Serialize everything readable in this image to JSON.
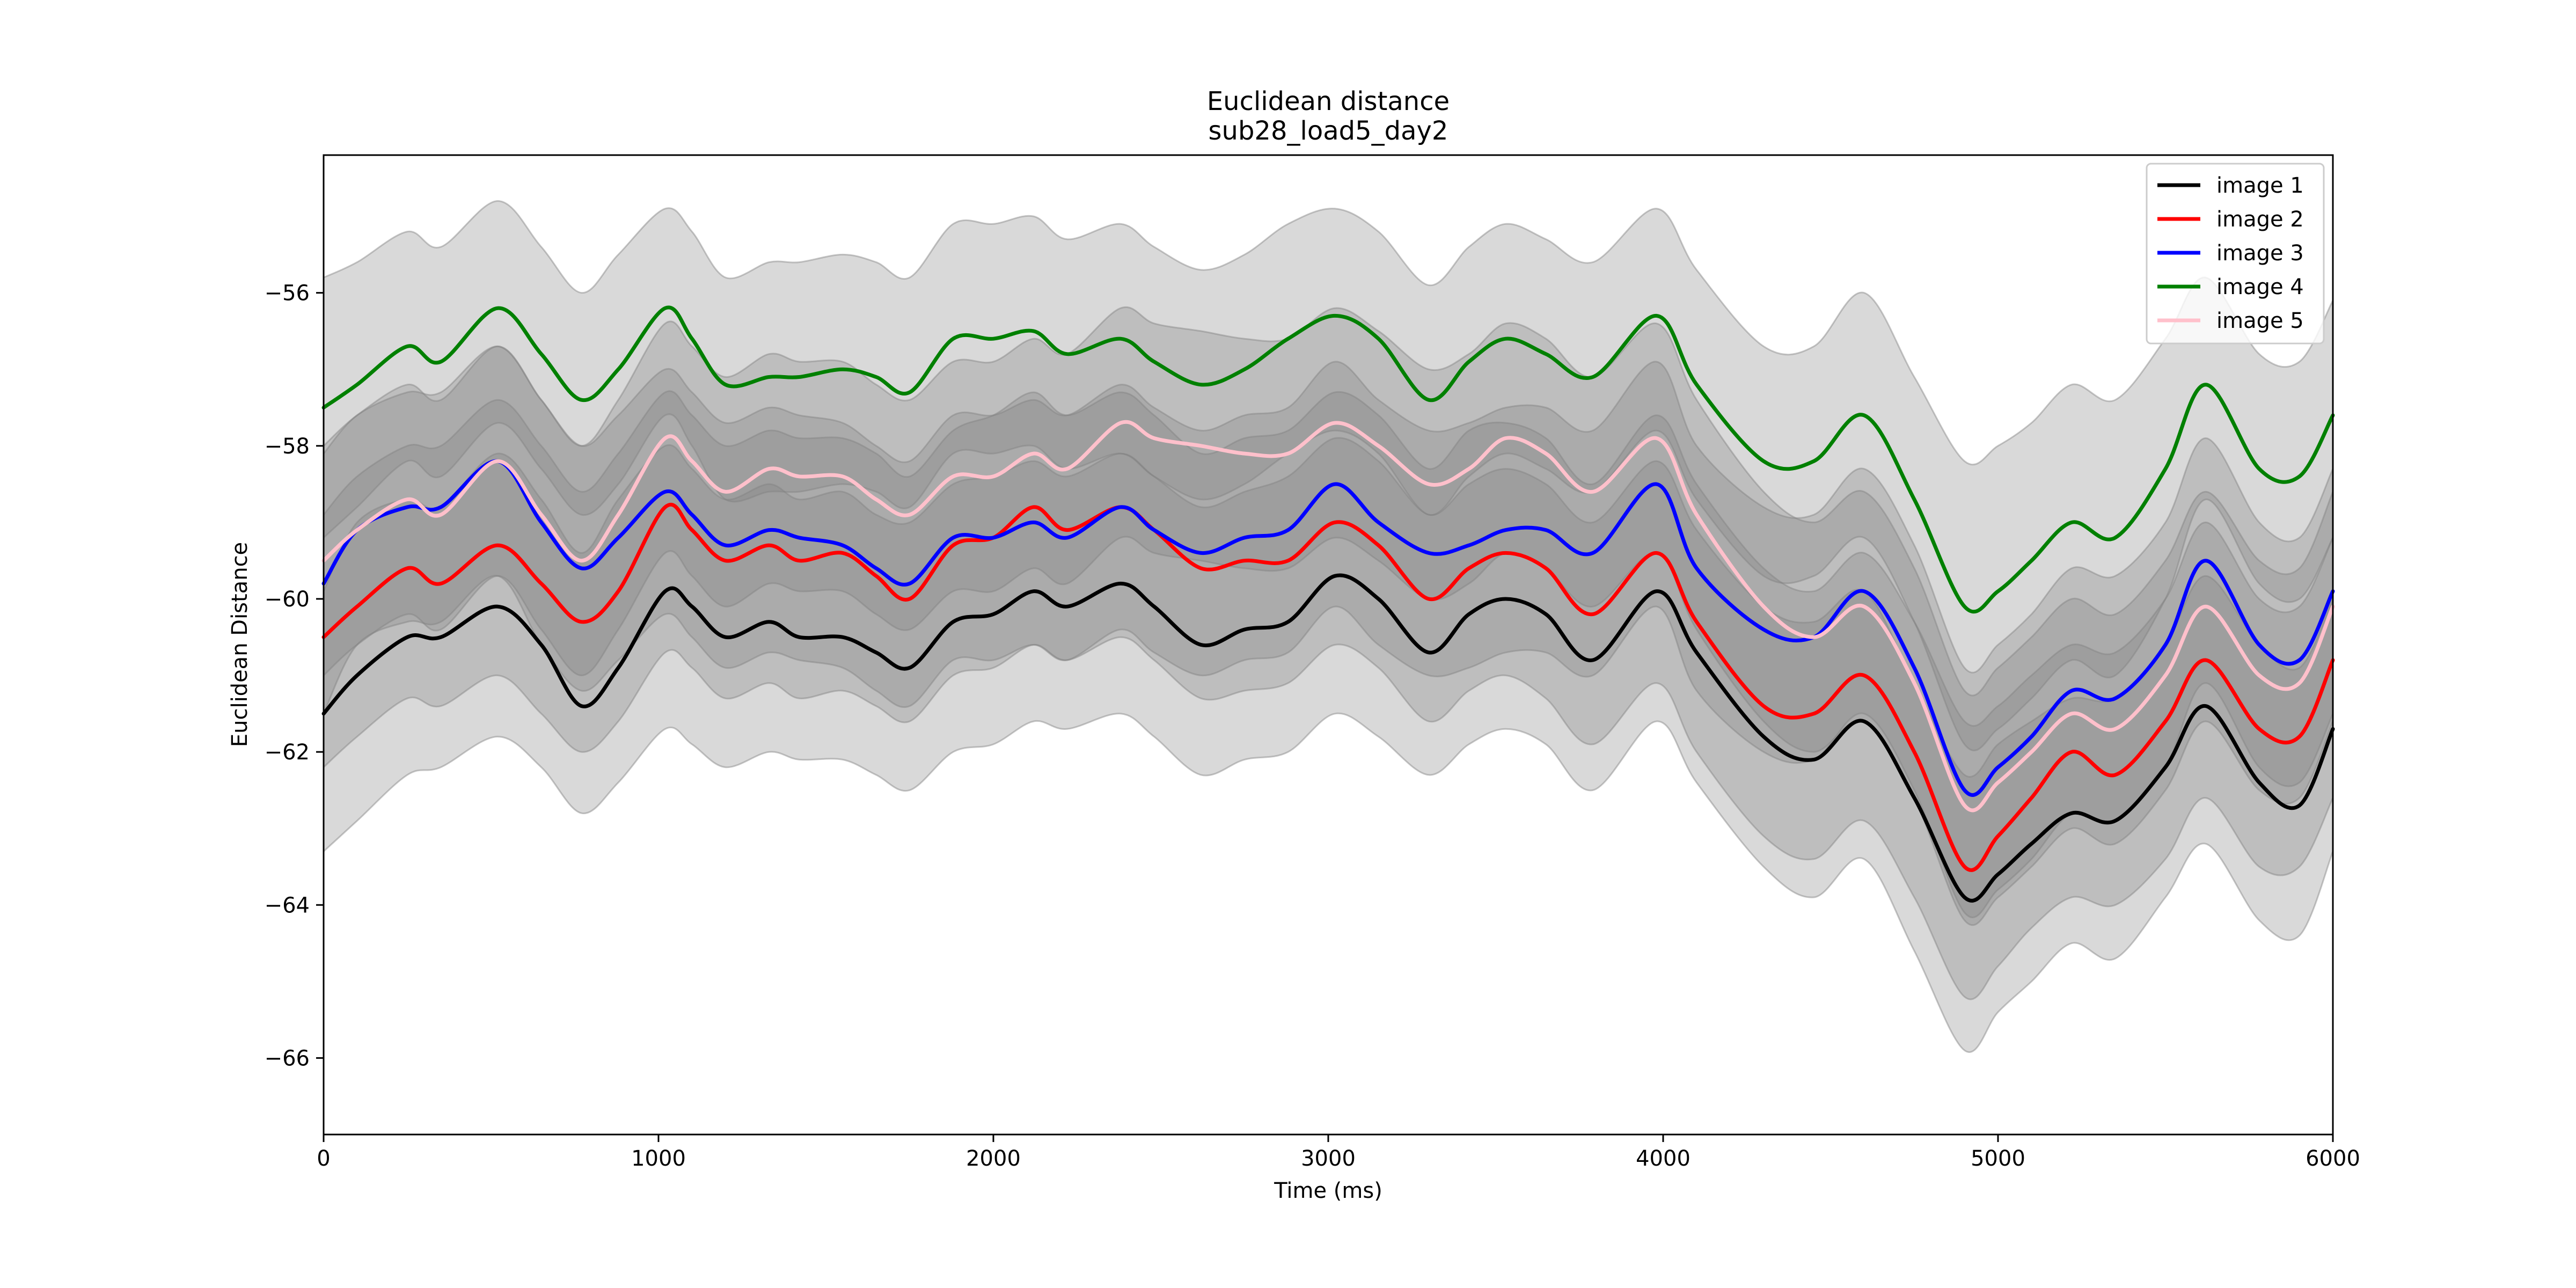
{
  "chart_data": {
    "type": "line",
    "title": "Euclidean distance",
    "subtitle": "sub28_load5_day2",
    "xlabel": "Time (ms)",
    "ylabel": "Euclidean Distance",
    "xlim": [
      0,
      6000
    ],
    "ylim": [
      -67,
      -54.2
    ],
    "xticks": [
      0,
      1000,
      2000,
      3000,
      4000,
      5000,
      6000
    ],
    "yticks": [
      -66,
      -64,
      -62,
      -60,
      -58,
      -56
    ],
    "grid": false,
    "legend_position": "top-right",
    "band_color": "#808080",
    "x": [
      0,
      100,
      250,
      350,
      520,
      650,
      770,
      880,
      1020,
      1100,
      1200,
      1330,
      1420,
      1550,
      1650,
      1750,
      1880,
      2000,
      2120,
      2220,
      2380,
      2480,
      2620,
      2750,
      2880,
      3020,
      3150,
      3300,
      3420,
      3530,
      3650,
      3790,
      3980,
      4100,
      4300,
      4450,
      4600,
      4750,
      4900,
      5000,
      5100,
      5220,
      5350,
      5500,
      5620,
      5780,
      5900,
      6000
    ],
    "series": [
      {
        "name": "image 1",
        "color": "#000000",
        "values": [
          -61.5,
          -61.0,
          -60.5,
          -60.5,
          -60.1,
          -60.6,
          -61.4,
          -60.9,
          -59.9,
          -60.1,
          -60.5,
          -60.3,
          -60.5,
          -60.5,
          -60.7,
          -60.9,
          -60.3,
          -60.2,
          -59.9,
          -60.1,
          -59.8,
          -60.1,
          -60.6,
          -60.4,
          -60.3,
          -59.7,
          -60.0,
          -60.7,
          -60.2,
          -60.0,
          -60.2,
          -60.8,
          -59.9,
          -60.7,
          -61.8,
          -62.1,
          -61.6,
          -62.6,
          -63.9,
          -63.6,
          -63.2,
          -62.8,
          -62.9,
          -62.2,
          -61.4,
          -62.4,
          -62.7,
          -61.7
        ]
      },
      {
        "name": "image 2",
        "color": "#ff0000",
        "values": [
          -60.5,
          -60.1,
          -59.6,
          -59.8,
          -59.3,
          -59.8,
          -60.3,
          -59.9,
          -58.8,
          -59.1,
          -59.5,
          -59.3,
          -59.5,
          -59.4,
          -59.7,
          -60.0,
          -59.3,
          -59.2,
          -58.8,
          -59.1,
          -58.8,
          -59.1,
          -59.6,
          -59.5,
          -59.5,
          -59.0,
          -59.3,
          -60.0,
          -59.6,
          -59.4,
          -59.6,
          -60.2,
          -59.4,
          -60.3,
          -61.4,
          -61.5,
          -61.0,
          -62.0,
          -63.5,
          -63.1,
          -62.6,
          -62.0,
          -62.3,
          -61.6,
          -60.8,
          -61.7,
          -61.8,
          -60.8
        ]
      },
      {
        "name": "image 3",
        "color": "#0000ff",
        "values": [
          -59.8,
          -59.1,
          -58.8,
          -58.8,
          -58.2,
          -59.0,
          -59.6,
          -59.2,
          -58.6,
          -58.9,
          -59.3,
          -59.1,
          -59.2,
          -59.3,
          -59.6,
          -59.8,
          -59.2,
          -59.2,
          -59.0,
          -59.2,
          -58.8,
          -59.1,
          -59.4,
          -59.2,
          -59.1,
          -58.5,
          -59.0,
          -59.4,
          -59.3,
          -59.1,
          -59.1,
          -59.4,
          -58.5,
          -59.6,
          -60.4,
          -60.5,
          -59.9,
          -60.9,
          -62.5,
          -62.2,
          -61.8,
          -61.2,
          -61.3,
          -60.6,
          -59.5,
          -60.6,
          -60.8,
          -59.9
        ]
      },
      {
        "name": "image 4",
        "color": "#008000",
        "values": [
          -57.5,
          -57.2,
          -56.7,
          -56.9,
          -56.2,
          -56.8,
          -57.4,
          -57.0,
          -56.2,
          -56.6,
          -57.2,
          -57.1,
          -57.1,
          -57.0,
          -57.1,
          -57.3,
          -56.6,
          -56.6,
          -56.5,
          -56.8,
          -56.6,
          -56.9,
          -57.2,
          -57.0,
          -56.6,
          -56.3,
          -56.6,
          -57.4,
          -56.9,
          -56.6,
          -56.8,
          -57.1,
          -56.3,
          -57.2,
          -58.2,
          -58.2,
          -57.6,
          -58.7,
          -60.1,
          -59.9,
          -59.5,
          -59.0,
          -59.2,
          -58.3,
          -57.2,
          -58.3,
          -58.4,
          -57.6
        ]
      },
      {
        "name": "image 5",
        "color": "#ffc0cb",
        "values": [
          -59.5,
          -59.1,
          -58.7,
          -58.9,
          -58.2,
          -58.9,
          -59.5,
          -58.9,
          -57.9,
          -58.2,
          -58.6,
          -58.3,
          -58.4,
          -58.4,
          -58.7,
          -58.9,
          -58.4,
          -58.4,
          -58.1,
          -58.3,
          -57.7,
          -57.9,
          -58.0,
          -58.1,
          -58.1,
          -57.7,
          -58.0,
          -58.5,
          -58.3,
          -57.9,
          -58.1,
          -58.6,
          -57.9,
          -58.9,
          -60.1,
          -60.5,
          -60.1,
          -61.1,
          -62.7,
          -62.4,
          -62.0,
          -61.5,
          -61.7,
          -61.0,
          -60.1,
          -61.0,
          -61.1,
          -60.1
        ]
      }
    ],
    "bands": [
      {
        "upper": [
          -59.9,
          -59.0,
          -58.7,
          -58.8,
          -58.1,
          -58.7,
          -59.4,
          -58.7,
          -58.0,
          -58.3,
          -58.7,
          -58.5,
          -58.7,
          -58.6,
          -58.9,
          -59.0,
          -58.5,
          -58.4,
          -58.2,
          -58.4,
          -58.1,
          -58.4,
          -58.8,
          -58.6,
          -58.4,
          -57.9,
          -58.2,
          -58.9,
          -58.5,
          -58.3,
          -58.5,
          -59.0,
          -58.2,
          -59.1,
          -60.1,
          -60.3,
          -59.9,
          -61.1,
          -62.3,
          -61.9,
          -61.6,
          -61.3,
          -61.3,
          -60.6,
          -59.7,
          -60.6,
          -60.9,
          -60.0
        ],
        "lower": [
          -63.3,
          -62.9,
          -62.3,
          -62.2,
          -61.8,
          -62.2,
          -62.8,
          -62.4,
          -61.7,
          -61.9,
          -62.2,
          -62.0,
          -62.1,
          -62.1,
          -62.3,
          -62.5,
          -62.0,
          -61.9,
          -61.6,
          -61.7,
          -61.5,
          -61.8,
          -62.3,
          -62.1,
          -62.0,
          -61.5,
          -61.8,
          -62.3,
          -61.9,
          -61.7,
          -61.9,
          -62.5,
          -61.6,
          -62.4,
          -63.5,
          -63.9,
          -63.4,
          -64.6,
          -65.9,
          -65.4,
          -65.0,
          -64.5,
          -64.7,
          -63.9,
          -63.2,
          -64.2,
          -64.4,
          -63.3
        ]
      },
      {
        "upper": [
          -58.9,
          -58.4,
          -58.0,
          -58.0,
          -57.4,
          -58.0,
          -58.6,
          -58.1,
          -57.3,
          -57.6,
          -58.0,
          -57.8,
          -57.9,
          -57.9,
          -58.1,
          -58.4,
          -57.8,
          -57.6,
          -57.3,
          -57.6,
          -57.3,
          -57.6,
          -58.1,
          -57.9,
          -57.8,
          -57.3,
          -57.6,
          -58.3,
          -57.8,
          -57.7,
          -57.9,
          -58.5,
          -57.6,
          -58.5,
          -59.6,
          -59.9,
          -59.4,
          -60.3,
          -61.6,
          -61.4,
          -61.0,
          -60.6,
          -60.7,
          -60.0,
          -59.0,
          -60.0,
          -60.1,
          -59.2
        ],
        "lower": [
          -62.2,
          -61.8,
          -61.3,
          -61.4,
          -61.0,
          -61.5,
          -62.0,
          -61.6,
          -60.7,
          -60.9,
          -61.3,
          -61.1,
          -61.3,
          -61.2,
          -61.4,
          -61.6,
          -61.0,
          -60.9,
          -60.6,
          -60.8,
          -60.5,
          -60.8,
          -61.3,
          -61.2,
          -61.1,
          -60.6,
          -60.9,
          -61.6,
          -61.2,
          -61.0,
          -61.3,
          -61.9,
          -61.1,
          -62.0,
          -63.1,
          -63.4,
          -62.9,
          -63.9,
          -65.2,
          -64.8,
          -64.3,
          -63.9,
          -64.0,
          -63.4,
          -62.6,
          -63.5,
          -63.5,
          -62.6
        ]
      },
      {
        "upper": [
          -58.1,
          -57.6,
          -57.3,
          -57.3,
          -56.7,
          -57.4,
          -58.0,
          -57.6,
          -57.0,
          -57.3,
          -57.7,
          -57.5,
          -57.6,
          -57.7,
          -58.0,
          -58.2,
          -57.6,
          -57.6,
          -57.4,
          -57.6,
          -57.2,
          -57.5,
          -57.8,
          -57.6,
          -57.5,
          -56.9,
          -57.4,
          -57.8,
          -57.7,
          -57.5,
          -57.5,
          -57.8,
          -56.9,
          -58.0,
          -58.8,
          -58.9,
          -58.3,
          -59.3,
          -60.9,
          -60.6,
          -60.2,
          -59.6,
          -59.7,
          -59.0,
          -57.9,
          -59.0,
          -59.2,
          -58.3
        ],
        "lower": [
          -61.5,
          -60.6,
          -60.3,
          -60.3,
          -59.7,
          -60.6,
          -61.2,
          -60.8,
          -60.2,
          -60.5,
          -60.9,
          -60.7,
          -60.8,
          -60.9,
          -61.2,
          -61.4,
          -60.8,
          -60.8,
          -60.6,
          -60.8,
          -60.4,
          -60.7,
          -61.0,
          -60.8,
          -60.7,
          -60.1,
          -60.6,
          -61.0,
          -60.9,
          -60.7,
          -60.7,
          -61.0,
          -60.1,
          -61.2,
          -62.0,
          -62.1,
          -61.5,
          -62.5,
          -64.1,
          -63.8,
          -63.4,
          -62.8,
          -62.9,
          -62.2,
          -61.1,
          -62.2,
          -62.4,
          -61.5
        ]
      },
      {
        "upper": [
          -55.8,
          -55.6,
          -55.2,
          -55.4,
          -54.8,
          -55.4,
          -56.0,
          -55.5,
          -54.9,
          -55.2,
          -55.8,
          -55.6,
          -55.6,
          -55.5,
          -55.6,
          -55.8,
          -55.1,
          -55.1,
          -55.0,
          -55.3,
          -55.1,
          -55.4,
          -55.7,
          -55.5,
          -55.1,
          -54.9,
          -55.2,
          -55.9,
          -55.4,
          -55.1,
          -55.3,
          -55.6,
          -54.9,
          -55.7,
          -56.7,
          -56.7,
          -56.0,
          -57.1,
          -58.2,
          -58.0,
          -57.7,
          -57.2,
          -57.4,
          -56.6,
          -55.8,
          -56.8,
          -56.9,
          -56.1
        ],
        "lower": [
          -59.2,
          -58.8,
          -58.2,
          -58.4,
          -57.7,
          -58.3,
          -58.9,
          -58.5,
          -57.6,
          -58.0,
          -58.7,
          -58.6,
          -58.6,
          -58.5,
          -58.6,
          -58.8,
          -58.1,
          -58.1,
          -58.0,
          -58.3,
          -58.1,
          -58.4,
          -58.7,
          -58.5,
          -58.1,
          -57.8,
          -58.1,
          -58.9,
          -58.4,
          -58.1,
          -58.3,
          -58.6,
          -57.8,
          -58.7,
          -59.7,
          -59.7,
          -59.2,
          -60.3,
          -61.9,
          -61.7,
          -61.3,
          -60.8,
          -61.0,
          -60.0,
          -58.7,
          -59.8,
          -60.0,
          -59.2
        ]
      },
      {
        "upper": [
          -58.0,
          -57.6,
          -57.2,
          -57.4,
          -56.7,
          -57.4,
          -58.0,
          -57.4,
          -56.4,
          -56.7,
          -57.1,
          -56.8,
          -56.9,
          -56.9,
          -57.2,
          -57.4,
          -56.9,
          -56.9,
          -56.6,
          -56.8,
          -56.2,
          -56.4,
          -56.5,
          -56.6,
          -56.6,
          -56.2,
          -56.5,
          -57.0,
          -56.8,
          -56.4,
          -56.6,
          -57.1,
          -56.4,
          -57.4,
          -58.6,
          -59.0,
          -58.6,
          -59.6,
          -61.2,
          -60.9,
          -60.5,
          -60.0,
          -60.2,
          -59.5,
          -58.6,
          -59.5,
          -59.6,
          -58.6
        ],
        "lower": [
          -61.0,
          -60.6,
          -60.2,
          -60.4,
          -59.7,
          -60.4,
          -61.0,
          -60.4,
          -59.4,
          -59.7,
          -60.1,
          -59.8,
          -59.9,
          -59.9,
          -60.2,
          -60.4,
          -59.9,
          -59.9,
          -59.6,
          -59.8,
          -59.2,
          -59.4,
          -59.5,
          -59.6,
          -59.6,
          -59.2,
          -59.5,
          -60.0,
          -59.8,
          -59.4,
          -59.6,
          -60.1,
          -59.4,
          -60.4,
          -61.6,
          -62.0,
          -61.6,
          -62.6,
          -64.2,
          -63.9,
          -63.5,
          -63.0,
          -63.2,
          -62.5,
          -61.6,
          -62.5,
          -62.6,
          -61.6
        ]
      }
    ]
  }
}
